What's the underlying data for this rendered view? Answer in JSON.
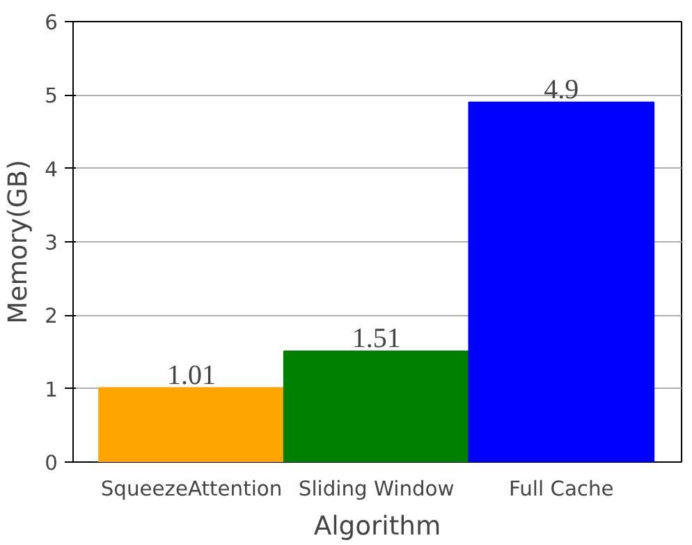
{
  "chart_data": {
    "type": "bar",
    "xlabel": "Algorithm",
    "ylabel": "Memory(GB)",
    "categories": [
      "SqueezeAttention",
      "Sliding Window",
      "Full Cache"
    ],
    "values": [
      1.01,
      1.51,
      4.9
    ],
    "colors": [
      "#ffa500",
      "#008000",
      "#0000ff"
    ],
    "ylim": [
      0,
      6
    ],
    "yticks": [
      0,
      1,
      2,
      3,
      4,
      5,
      6
    ],
    "grid": "y",
    "data_labels": true
  }
}
